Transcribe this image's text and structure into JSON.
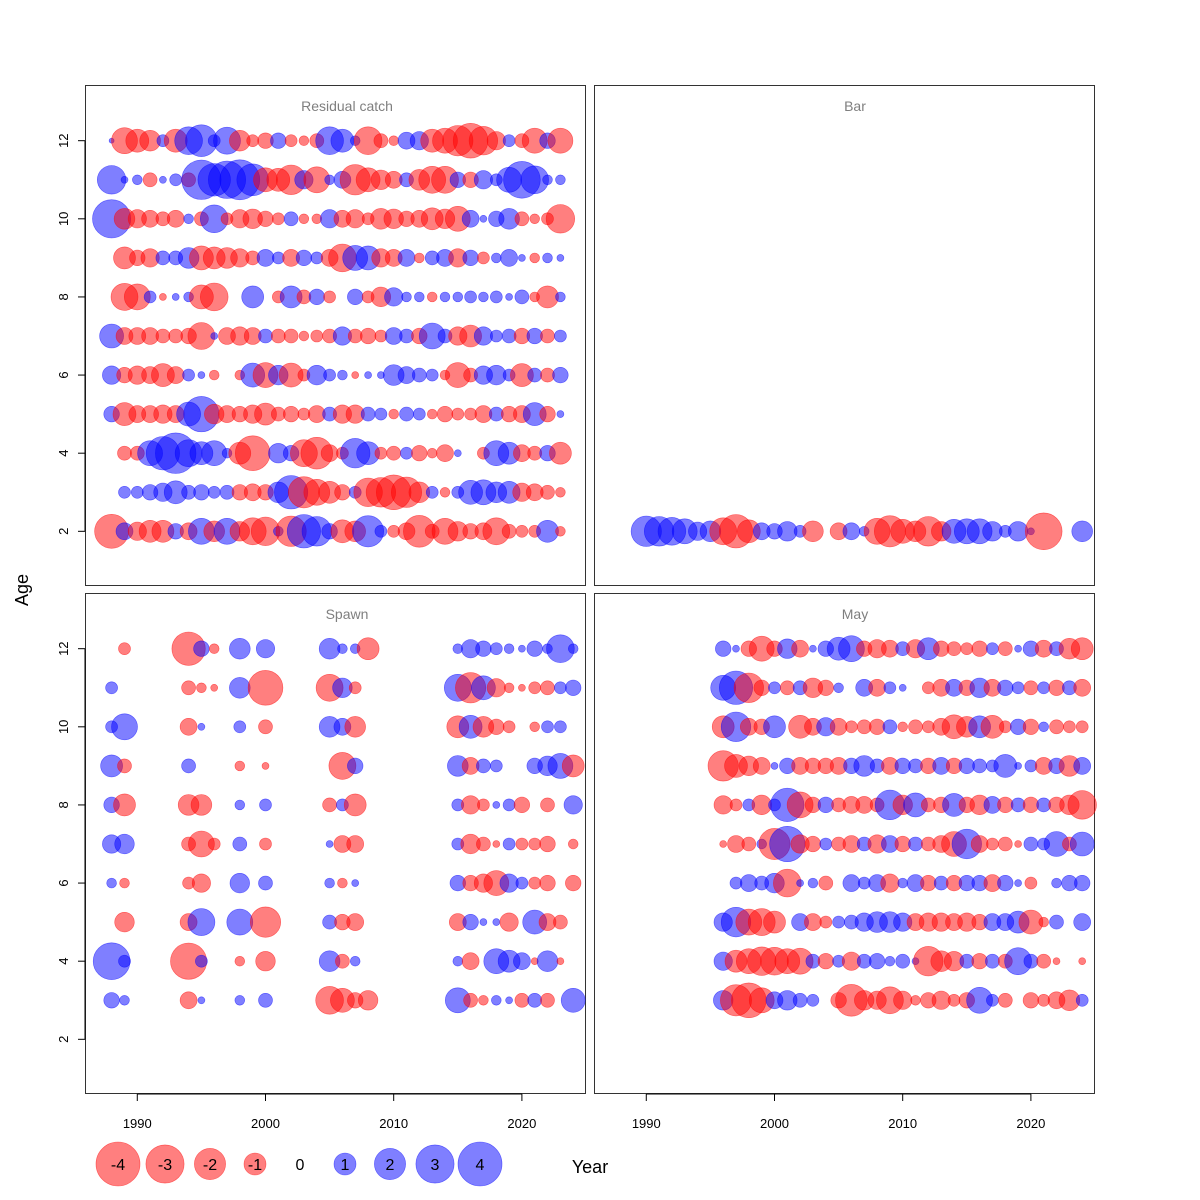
{
  "colors": {
    "negative": "#ff0000",
    "positive": "#0000ff",
    "negative_fill": "rgba(255,0,0,0.5)",
    "positive_fill": "rgba(0,0,0,255,0.5)",
    "panel_title": "#7f7f7f"
  },
  "chart_data": {
    "type": "scatter",
    "subtype": "bubble",
    "xlabel": "Year",
    "ylabel": "Age",
    "xlim": [
      1986,
      2025
    ],
    "ylim": [
      0.6,
      13.4
    ],
    "x_ticks": [
      1990,
      2000,
      2010,
      2020
    ],
    "y_ticks": [
      2,
      4,
      6,
      8,
      10,
      12
    ],
    "grid": false,
    "size_encoding": "bubble area ~ |residual|; red = negative, blue = positive",
    "legend": {
      "placement": "bottom-left",
      "entries": [
        "-4",
        "-3",
        "-2",
        "-1",
        "0",
        "1",
        "2",
        "3",
        "4"
      ],
      "values": [
        -4,
        -3,
        -2,
        -1,
        0,
        1,
        2,
        3,
        4
      ]
    },
    "panels": [
      {
        "title": "Residual catch",
        "years": [
          1988,
          2023
        ],
        "ages": [
          2,
          3,
          4,
          5,
          6,
          7,
          8,
          9,
          10,
          11,
          12
        ],
        "residuals": {
          "12": [
            0.05,
            -1.4,
            -1.1,
            -0.9,
            0.3,
            -1.1,
            1.6,
            2.1,
            0.3,
            1.5,
            -0.9,
            -0.3,
            -0.5,
            0.5,
            -0.3,
            -0.2,
            -0.4,
            1.6,
            1.1,
            0.2,
            -1.6,
            -0.4,
            -0.2,
            0.6,
            0.7,
            -1.1,
            -1.3,
            -1.9,
            -2.5,
            -1.7,
            -0.7,
            0.3,
            -0.4,
            -1.3,
            0.5,
            -1.3
          ],
          "11": [
            1.7,
            0.1,
            0.2,
            -0.4,
            0.1,
            0.3,
            -0.4,
            3.2,
            2.2,
            2.9,
            3.3,
            2.1,
            -1.2,
            -1.1,
            -1.8,
            0.7,
            -1.4,
            0.2,
            0.6,
            -1.9,
            -1.2,
            -0.8,
            -0.6,
            0.4,
            -0.9,
            -1.5,
            -1.5,
            0.5,
            -0.5,
            0.7,
            0.3,
            1.3,
            2.8,
            1.6,
            0.2,
            0.2
          ],
          "10": [
            3.0,
            -0.9,
            -0.7,
            -0.6,
            -0.4,
            -0.6,
            0.2,
            -0.4,
            1.6,
            -0.3,
            -0.7,
            -0.8,
            -0.5,
            -0.3,
            0.4,
            -0.2,
            -0.2,
            0.7,
            -0.6,
            -0.7,
            -0.3,
            -0.9,
            -0.8,
            -0.5,
            -0.6,
            -1.0,
            -0.8,
            -1.3,
            0.6,
            0.1,
            0.5,
            0.9,
            -0.4,
            -0.2,
            -0.3,
            -1.7
          ],
          "9": [
            0.0,
            -1.0,
            -0.5,
            -0.7,
            0.4,
            0.4,
            0.9,
            -1.2,
            -1.0,
            -0.9,
            -0.7,
            -0.4,
            0.6,
            0.3,
            -0.6,
            0.5,
            0.3,
            -0.6,
            -1.6,
            1.3,
            1.2,
            -0.7,
            -0.6,
            0.6,
            -0.2,
            0.4,
            0.6,
            -0.7,
            0.5,
            -0.3,
            0.2,
            0.6,
            0.1,
            -0.2,
            0.2,
            0.1
          ],
          "8": [
            0.0,
            -1.5,
            -1.4,
            0.3,
            -0.1,
            0.1,
            0.2,
            -1.2,
            -1.6,
            0.0,
            0.0,
            1.0,
            0.0,
            -0.3,
            1.0,
            -0.4,
            0.5,
            -0.3,
            0.0,
            0.5,
            -0.3,
            -0.8,
            0.7,
            0.2,
            0.2,
            -0.2,
            0.2,
            0.2,
            0.3,
            0.2,
            0.3,
            0.1,
            0.4,
            -0.2,
            -1.0,
            0.2
          ],
          "7": [
            1.2,
            -0.6,
            -0.6,
            -0.6,
            -0.4,
            -0.4,
            -0.5,
            -1.5,
            0.1,
            -0.6,
            -0.7,
            -0.6,
            0.4,
            -0.4,
            -0.4,
            -0.2,
            -0.3,
            -0.4,
            0.7,
            -0.4,
            -0.5,
            -0.3,
            0.6,
            0.4,
            -0.5,
            1.4,
            0.4,
            -0.7,
            -1.0,
            0.7,
            0.3,
            0.4,
            -0.5,
            0.5,
            -0.4,
            0.3
          ],
          "6": [
            0.7,
            -0.5,
            -0.7,
            -0.6,
            -1.1,
            -0.6,
            0.3,
            0.1,
            -0.2,
            0.0,
            -0.2,
            1.2,
            -1.3,
            0.8,
            -1.2,
            -0.3,
            0.8,
            0.3,
            0.2,
            -0.1,
            0.1,
            0.1,
            0.9,
            0.6,
            0.4,
            0.3,
            -0.2,
            -1.3,
            -0.4,
            0.7,
            0.8,
            0.3,
            -1.1,
            0.4,
            -0.4,
            0.5
          ],
          "5": [
            0.5,
            -1.1,
            -0.6,
            -0.6,
            -0.7,
            -0.6,
            1.2,
            2.6,
            -0.8,
            -0.6,
            -0.5,
            -0.7,
            -1.0,
            -0.4,
            -0.5,
            -0.3,
            -0.6,
            0.4,
            -0.7,
            -0.7,
            0.4,
            0.3,
            -0.2,
            0.4,
            0.3,
            -0.2,
            -0.5,
            -0.3,
            -0.3,
            -0.6,
            0.4,
            -0.5,
            -0.6,
            1.1,
            -0.5,
            0.1
          ],
          "4": [
            0.0,
            -0.4,
            -0.4,
            1.3,
            2.3,
            3.4,
            1.5,
            1.1,
            1.3,
            0.2,
            -1.0,
            -2.5,
            0.0,
            0.8,
            0.5,
            -1.5,
            -2.1,
            -0.6,
            -0.3,
            1.8,
            1.1,
            -0.3,
            -0.4,
            0.3,
            -0.5,
            -0.2,
            -0.6,
            0.1,
            0.0,
            -0.3,
            1.3,
            1.0,
            -0.6,
            -0.4,
            0.5,
            -1.0
          ],
          "3": [
            0.0,
            0.3,
            0.3,
            0.5,
            0.7,
            1.1,
            0.4,
            0.5,
            0.3,
            0.4,
            -0.5,
            -0.6,
            -0.5,
            0.9,
            2.3,
            -2.0,
            -1.4,
            -1.0,
            -0.5,
            0.3,
            -1.7,
            -1.8,
            -2.5,
            -1.9,
            -0.9,
            0.3,
            -0.2,
            0.3,
            1.2,
            1.3,
            0.9,
            1.0,
            -0.7,
            -0.6,
            -0.4,
            -0.2
          ],
          "2": [
            -2.4,
            0.6,
            -0.7,
            -1.0,
            -1.0,
            0.5,
            -0.6,
            1.4,
            -0.9,
            1.4,
            -0.8,
            -1.5,
            -1.7,
            0.2,
            -1.9,
            2.3,
            1.8,
            0.5,
            -1.1,
            -0.9,
            2.0,
            0.3,
            -0.3,
            -0.6,
            -2.1,
            -0.4,
            -1.4,
            -0.8,
            -0.5,
            -0.6,
            -1.5,
            -0.4,
            -0.3,
            -0.3,
            1.0,
            -0.2
          ]
        }
      },
      {
        "title": "Bar",
        "years": [
          1990,
          2024
        ],
        "ages": [
          2
        ],
        "residuals": {
          "2": [
            1.9,
            1.8,
            1.6,
            1.3,
            0.7,
            0.9,
            -1.5,
            -2.3,
            -1.1,
            0.6,
            0.5,
            0.8,
            0.3,
            -0.9,
            0.0,
            -0.6,
            0.6,
            0.2,
            -1.4,
            -2.0,
            -1.2,
            -0.9,
            -1.8,
            -0.8,
            1.2,
            1.3,
            1.3,
            0.8,
            0.3,
            0.8,
            0.1,
            -2.8,
            0.0,
            0.0,
            0.9
          ]
        }
      },
      {
        "title": "Spawn",
        "years": [
          1988,
          2024
        ],
        "ages": [
          3,
          4,
          5,
          6,
          7,
          8,
          9,
          10,
          11,
          12
        ],
        "survey_years": [
          1988,
          1989,
          1994,
          1995,
          1996,
          1998,
          2000,
          2005,
          2006,
          2007,
          2008,
          2015,
          2016,
          2017,
          2018,
          2019,
          2020,
          2021,
          2022,
          2023,
          2024
        ],
        "residuals": {
          "12": [
            0.0,
            -0.3,
            -2.3,
            0.5,
            -0.2,
            0.9,
            0.7,
            0.9,
            0.2,
            0.2,
            -1.0,
            0.2,
            0.7,
            0.5,
            0.3,
            0.2,
            0.1,
            0.5,
            0.2,
            1.6,
            0.2
          ],
          "11": [
            0.3,
            0.0,
            -0.4,
            -0.2,
            -0.1,
            0.9,
            -2.5,
            -1.5,
            0.8,
            -0.3,
            0.0,
            1.5,
            -1.9,
            1.2,
            -0.7,
            -0.2,
            -0.1,
            -0.3,
            -0.4,
            0.3,
            0.5
          ],
          "10": [
            0.3,
            1.4,
            -0.6,
            0.1,
            0.0,
            0.3,
            -0.4,
            0.9,
            0.6,
            -0.9,
            0.0,
            -1.0,
            1.1,
            -0.9,
            -0.5,
            -0.3,
            0.0,
            -0.2,
            0.3,
            0.3,
            0.0
          ],
          "9": [
            1.0,
            -0.4,
            0.4,
            0.0,
            0.0,
            -0.2,
            -0.1,
            0.0,
            -1.5,
            0.5,
            0.0,
            0.9,
            -0.6,
            0.4,
            0.3,
            0.0,
            0.0,
            0.5,
            0.8,
            1.3,
            -1.0
          ],
          "8": [
            0.5,
            -1.0,
            -0.9,
            -0.9,
            0.0,
            0.2,
            0.3,
            -0.4,
            0.3,
            -1.0,
            0.0,
            0.3,
            -0.7,
            -0.3,
            0.1,
            0.3,
            -0.5,
            0.0,
            -0.4,
            0.0,
            0.7
          ],
          "7": [
            0.7,
            0.8,
            -0.4,
            -1.4,
            -0.3,
            0.4,
            -0.3,
            0.1,
            -0.6,
            -0.6,
            0.0,
            0.3,
            -0.8,
            -0.4,
            -0.1,
            0.3,
            -0.3,
            -0.3,
            -0.5,
            0.0,
            -0.2
          ],
          "6": [
            0.2,
            -0.2,
            -0.3,
            -0.7,
            0.0,
            0.8,
            0.4,
            0.2,
            -0.2,
            0.1,
            0.0,
            0.5,
            -0.5,
            -0.7,
            -1.3,
            0.7,
            0.3,
            -0.3,
            -0.5,
            0.0,
            -0.5
          ],
          "5": [
            0.0,
            -0.8,
            -0.6,
            1.5,
            0.0,
            1.4,
            -1.9,
            0.4,
            -0.5,
            -0.6,
            0.0,
            -0.6,
            0.5,
            0.1,
            0.1,
            -0.7,
            0.0,
            1.2,
            -0.6,
            -0.4,
            0.0
          ],
          "4": [
            2.8,
            0.3,
            -2.7,
            0.3,
            0.0,
            -0.2,
            -0.8,
            0.9,
            -0.4,
            0.2,
            0.0,
            0.2,
            -0.6,
            0.0,
            1.3,
            1.0,
            0.6,
            -0.1,
            0.9,
            -0.1,
            0.0
          ],
          "3": [
            0.5,
            0.2,
            -0.6,
            0.1,
            0.0,
            0.2,
            0.4,
            -1.6,
            -1.2,
            -0.5,
            -0.8,
            1.3,
            -0.4,
            -0.2,
            0.2,
            0.1,
            -0.4,
            0.4,
            -0.4,
            0.0,
            1.2
          ]
        }
      },
      {
        "title": "May",
        "years": [
          1996,
          2024
        ],
        "ages": [
          3,
          4,
          5,
          6,
          7,
          8,
          9,
          10,
          11,
          12
        ],
        "residuals": {
          "12": [
            0.5,
            0.1,
            -0.5,
            -1.3,
            -0.5,
            0.8,
            -0.6,
            0.1,
            0.5,
            1.1,
            1.4,
            -0.5,
            -0.7,
            -0.6,
            0.4,
            -0.7,
            1.0,
            -0.5,
            -0.4,
            -0.3,
            -0.5,
            0.3,
            -0.4,
            0.1,
            0.5,
            -0.6,
            0.4,
            -0.9,
            -1.0
          ],
          "11": [
            1.3,
            2.3,
            -1.8,
            -0.5,
            0.3,
            -0.4,
            0.4,
            -0.8,
            -0.5,
            0.2,
            0.0,
            0.6,
            -0.6,
            0.3,
            0.1,
            0.0,
            -0.3,
            -0.6,
            0.6,
            -0.5,
            0.8,
            -0.6,
            0.5,
            0.3,
            -0.4,
            0.3,
            -0.5,
            0.4,
            -0.6
          ],
          "10": [
            -1.0,
            1.8,
            -0.6,
            -0.5,
            1.0,
            0.0,
            -1.1,
            -0.6,
            0.7,
            -0.6,
            -0.3,
            -0.4,
            -0.5,
            0.4,
            -0.2,
            -0.4,
            -0.3,
            -0.6,
            -1.2,
            -0.9,
            1.0,
            -1.1,
            -0.3,
            0.5,
            -0.5,
            0.2,
            -0.4,
            -0.3,
            -0.3
          ],
          "9": [
            -1.9,
            -1.1,
            -0.8,
            -0.6,
            0.1,
            0.5,
            -0.6,
            -0.5,
            -0.5,
            -0.6,
            0.5,
            0.9,
            0.4,
            -0.6,
            0.5,
            0.4,
            -0.5,
            0.6,
            -0.5,
            0.5,
            0.4,
            0.3,
            1.1,
            0.1,
            0.3,
            -0.6,
            0.5,
            -0.9,
            0.6
          ],
          "8": [
            -0.7,
            -0.3,
            0.3,
            -0.8,
            0.3,
            2.3,
            -1.4,
            -0.5,
            0.5,
            -0.4,
            -0.6,
            -0.6,
            -0.4,
            1.8,
            -0.8,
            1.2,
            -0.4,
            -0.5,
            1.1,
            -0.5,
            -0.8,
            0.6,
            -0.5,
            0.4,
            -0.5,
            0.4,
            -0.5,
            -0.8,
            -1.7
          ],
          "7": [
            -0.1,
            -0.6,
            -0.4,
            0.2,
            -2.0,
            2.6,
            -0.7,
            -0.5,
            0.3,
            -0.4,
            -0.6,
            0.4,
            -0.7,
            0.6,
            -0.5,
            0.4,
            -0.4,
            -0.6,
            -1.3,
            1.8,
            -0.6,
            -0.3,
            -0.4,
            -0.1,
            0.4,
            0.3,
            1.3,
            -0.4,
            1.2
          ],
          "6": [
            0.0,
            0.3,
            0.6,
            0.4,
            0.8,
            -1.6,
            0.1,
            0.2,
            -0.4,
            0.0,
            0.6,
            0.3,
            0.6,
            -0.7,
            0.2,
            0.6,
            -0.5,
            0.4,
            -0.5,
            0.5,
            0.5,
            -0.6,
            0.5,
            0.1,
            -0.3,
            0.0,
            0.2,
            0.5,
            0.5
          ],
          "5": [
            0.7,
            1.8,
            -1.4,
            -1.5,
            -1.0,
            0.0,
            0.6,
            -0.6,
            -0.3,
            0.3,
            0.4,
            0.7,
            0.9,
            0.9,
            0.7,
            -0.6,
            -0.7,
            -0.7,
            -0.6,
            -0.7,
            -0.5,
            0.6,
            0.6,
            1.0,
            -1.2,
            -0.2,
            0.4,
            0.0,
            0.6
          ],
          "4": [
            0.7,
            -1.0,
            -1.3,
            -1.7,
            -1.6,
            -1.3,
            -1.4,
            0.4,
            -0.5,
            0.3,
            -0.7,
            0.4,
            0.5,
            0.2,
            0.4,
            0.1,
            -1.8,
            -0.9,
            -0.8,
            0.4,
            -0.5,
            0.4,
            -0.4,
            1.5,
            0.4,
            -0.4,
            -0.1,
            0.0,
            -0.1
          ],
          "3": [
            0.8,
            -2.0,
            -2.5,
            -1.3,
            0.6,
            0.8,
            0.4,
            0.3,
            0.0,
            -0.5,
            -2.1,
            -0.8,
            -0.7,
            -1.5,
            -0.7,
            -0.2,
            -0.5,
            -0.7,
            -0.3,
            -0.5,
            1.4,
            0.3,
            -0.4,
            0.0,
            -0.5,
            -0.3,
            -0.6,
            -0.9,
            0.3
          ]
        }
      }
    ]
  }
}
